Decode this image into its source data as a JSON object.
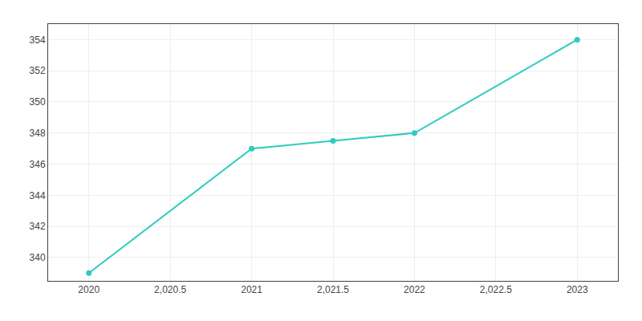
{
  "chart_data": {
    "type": "line",
    "x": [
      2020,
      2021,
      2021.5,
      2022,
      2023
    ],
    "values": [
      339,
      347,
      347.5,
      348,
      354
    ],
    "color": "#2ecbbd",
    "marker": "circle",
    "xlim": [
      2019.75,
      2023.25
    ],
    "ylim": [
      338.5,
      355.0
    ],
    "xticks": [
      2020,
      {
        "value": 2020.5,
        "label": "2,020.5"
      },
      2021,
      {
        "value": 2021.5,
        "label": "2,021.5"
      },
      2022,
      {
        "value": 2022.5,
        "label": "2,022.5"
      },
      2023
    ],
    "yticks": [
      340,
      342,
      344,
      346,
      348,
      350,
      352,
      354
    ],
    "grid": true
  }
}
